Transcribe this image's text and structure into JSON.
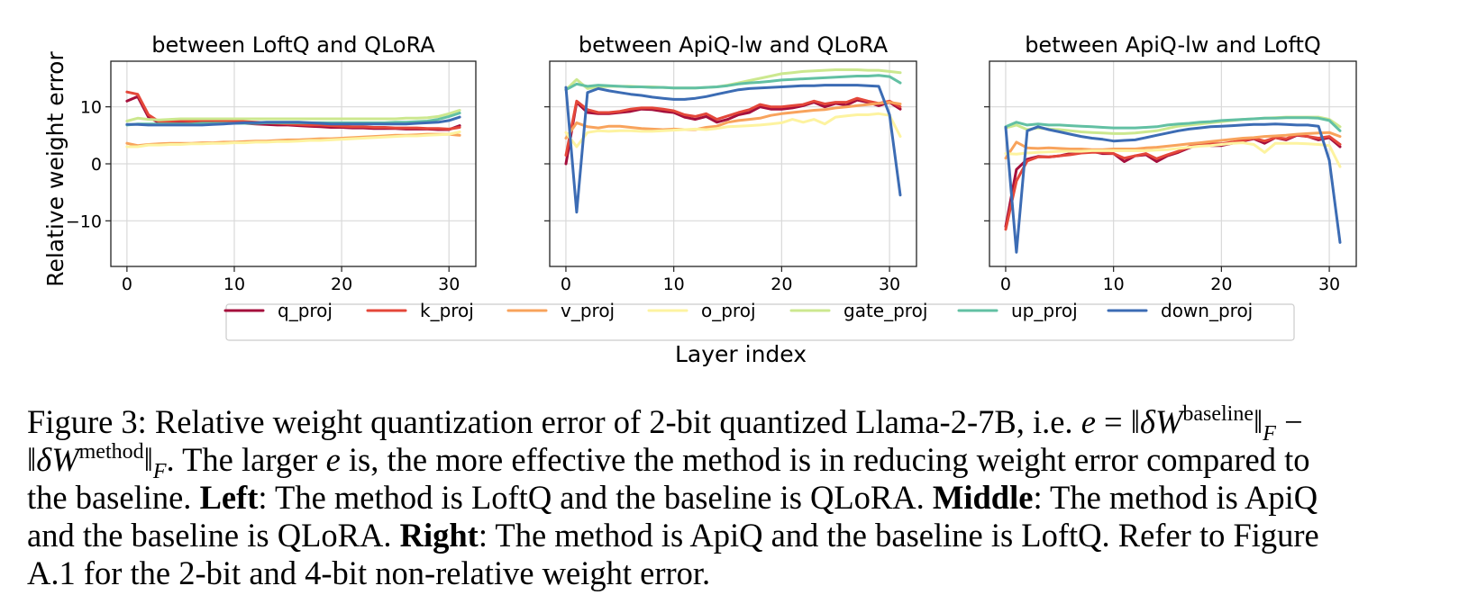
{
  "figure": {
    "ylabel": "Relative weight error",
    "xlabel": "Layer index",
    "legend": [
      {
        "name": "q_proj",
        "color": "#a50f3c"
      },
      {
        "name": "k_proj",
        "color": "#e4473a"
      },
      {
        "name": "v_proj",
        "color": "#f8a35c"
      },
      {
        "name": "o_proj",
        "color": "#fdf3a0"
      },
      {
        "name": "gate_proj",
        "color": "#cce88f"
      },
      {
        "name": "up_proj",
        "color": "#62c0a3"
      },
      {
        "name": "down_proj",
        "color": "#3c6cb4"
      }
    ]
  },
  "chart_data": [
    {
      "type": "line",
      "title": "between LoftQ and QLoRA",
      "xlabel": "Layer index",
      "ylabel": "Relative weight error",
      "xlim": [
        -1.5,
        32.5
      ],
      "ylim": [
        -18,
        18
      ],
      "xticks": [
        0,
        10,
        20,
        30
      ],
      "yticks": [
        -10,
        0,
        10
      ],
      "grid": true,
      "x": [
        0,
        1,
        2,
        3,
        4,
        5,
        6,
        7,
        8,
        9,
        10,
        11,
        12,
        13,
        14,
        15,
        16,
        17,
        18,
        19,
        20,
        21,
        22,
        23,
        24,
        25,
        26,
        27,
        28,
        29,
        30,
        31
      ],
      "series": [
        {
          "name": "q_proj",
          "values": [
            11.0,
            11.8,
            8.2,
            7.2,
            7.3,
            7.4,
            7.3,
            7.3,
            7.2,
            7.2,
            7.2,
            7.1,
            7.0,
            6.9,
            6.8,
            6.8,
            6.7,
            6.6,
            6.5,
            6.4,
            6.4,
            6.3,
            6.3,
            6.2,
            6.2,
            6.2,
            6.1,
            6.1,
            6.1,
            6.0,
            6.0,
            6.7
          ]
        },
        {
          "name": "k_proj",
          "values": [
            12.6,
            12.2,
            8.6,
            7.4,
            7.5,
            7.6,
            7.5,
            7.6,
            7.6,
            7.5,
            7.5,
            7.4,
            7.3,
            7.2,
            7.1,
            7.0,
            6.9,
            6.8,
            6.8,
            6.7,
            6.6,
            6.5,
            6.5,
            6.4,
            6.4,
            6.3,
            6.3,
            6.3,
            6.2,
            6.2,
            6.1,
            6.4
          ]
        },
        {
          "name": "v_proj",
          "values": [
            3.6,
            3.2,
            3.4,
            3.5,
            3.6,
            3.6,
            3.6,
            3.7,
            3.7,
            3.8,
            3.8,
            3.9,
            4.0,
            4.0,
            4.1,
            4.2,
            4.2,
            4.3,
            4.4,
            4.4,
            4.5,
            4.6,
            4.7,
            4.8,
            4.9,
            5.0,
            5.0,
            5.1,
            5.2,
            5.2,
            5.2,
            5.0
          ]
        },
        {
          "name": "o_proj",
          "values": [
            3.0,
            3.0,
            3.3,
            3.3,
            3.4,
            3.4,
            3.5,
            3.5,
            3.6,
            3.6,
            3.7,
            3.7,
            3.8,
            3.8,
            3.9,
            3.9,
            4.0,
            4.1,
            4.1,
            4.2,
            4.3,
            4.4,
            4.5,
            4.6,
            4.7,
            4.8,
            4.9,
            4.9,
            5.0,
            5.1,
            5.2,
            5.6
          ]
        },
        {
          "name": "gate_proj",
          "values": [
            7.5,
            8.0,
            7.8,
            7.7,
            7.8,
            7.9,
            7.9,
            7.9,
            7.9,
            7.9,
            7.9,
            7.9,
            7.9,
            7.9,
            7.9,
            7.9,
            7.9,
            7.9,
            7.9,
            7.9,
            7.9,
            7.9,
            7.9,
            7.9,
            7.9,
            7.9,
            8.0,
            8.0,
            8.1,
            8.3,
            8.8,
            9.4
          ]
        },
        {
          "name": "up_proj",
          "values": [
            6.8,
            7.0,
            7.0,
            7.0,
            7.0,
            7.0,
            7.0,
            7.1,
            7.1,
            7.1,
            7.1,
            7.1,
            7.1,
            7.2,
            7.2,
            7.2,
            7.2,
            7.2,
            7.2,
            7.2,
            7.2,
            7.2,
            7.2,
            7.2,
            7.2,
            7.3,
            7.3,
            7.4,
            7.5,
            7.8,
            8.3,
            8.9
          ]
        },
        {
          "name": "down_proj",
          "values": [
            6.9,
            6.9,
            6.8,
            6.8,
            6.8,
            6.8,
            6.8,
            6.8,
            6.9,
            7.0,
            7.1,
            7.2,
            7.2,
            7.3,
            7.3,
            7.3,
            7.3,
            7.2,
            7.1,
            7.0,
            7.0,
            7.0,
            7.0,
            7.0,
            7.0,
            7.0,
            7.0,
            7.1,
            7.2,
            7.3,
            7.6,
            8.2
          ]
        }
      ]
    },
    {
      "type": "line",
      "title": "between ApiQ-lw and QLoRA",
      "xlabel": "Layer index",
      "ylabel": "",
      "xlim": [
        -1.5,
        32.5
      ],
      "ylim": [
        -18,
        18
      ],
      "xticks": [
        0,
        10,
        20,
        30
      ],
      "yticks": [
        -10,
        0,
        10
      ],
      "grid": true,
      "x": [
        0,
        1,
        2,
        3,
        4,
        5,
        6,
        7,
        8,
        9,
        10,
        11,
        12,
        13,
        14,
        15,
        16,
        17,
        18,
        19,
        20,
        21,
        22,
        23,
        24,
        25,
        26,
        27,
        28,
        29,
        30,
        31
      ],
      "series": [
        {
          "name": "q_proj",
          "values": [
            0.0,
            10.8,
            9.0,
            8.8,
            8.8,
            9.0,
            9.2,
            9.6,
            9.5,
            9.2,
            9.0,
            8.2,
            7.8,
            8.3,
            7.3,
            7.8,
            8.6,
            9.0,
            10.0,
            9.6,
            9.6,
            9.8,
            10.2,
            10.8,
            10.0,
            10.6,
            10.3,
            11.2,
            10.8,
            10.2,
            10.8,
            9.6
          ]
        },
        {
          "name": "k_proj",
          "values": [
            1.5,
            11.0,
            9.5,
            9.0,
            9.0,
            9.2,
            9.6,
            9.8,
            9.8,
            9.6,
            9.3,
            8.6,
            8.3,
            8.8,
            7.8,
            8.4,
            9.0,
            9.5,
            10.4,
            10.0,
            10.0,
            10.2,
            10.4,
            11.0,
            10.5,
            10.8,
            10.8,
            11.5,
            11.0,
            10.6,
            11.0,
            10.0
          ]
        },
        {
          "name": "v_proj",
          "values": [
            4.5,
            7.2,
            6.5,
            6.3,
            6.6,
            6.6,
            6.4,
            6.2,
            6.1,
            6.0,
            6.1,
            6.0,
            6.0,
            6.4,
            6.6,
            7.3,
            7.6,
            7.8,
            8.0,
            8.5,
            8.8,
            9.0,
            9.2,
            9.4,
            9.5,
            9.8,
            10.0,
            10.2,
            10.4,
            10.6,
            10.8,
            10.5
          ]
        },
        {
          "name": "o_proj",
          "values": [
            5.5,
            3.0,
            5.5,
            5.8,
            5.7,
            5.8,
            5.8,
            5.7,
            5.7,
            5.8,
            5.9,
            6.0,
            6.1,
            6.0,
            6.2,
            6.5,
            6.6,
            6.7,
            6.8,
            7.0,
            7.2,
            7.8,
            7.3,
            7.8,
            7.0,
            8.2,
            8.4,
            8.6,
            8.6,
            8.8,
            8.5,
            4.8
          ]
        },
        {
          "name": "gate_proj",
          "values": [
            13.0,
            14.8,
            13.2,
            13.5,
            13.6,
            13.6,
            13.6,
            13.5,
            13.5,
            13.4,
            13.3,
            13.3,
            13.3,
            13.4,
            13.5,
            13.8,
            14.2,
            14.6,
            15.0,
            15.4,
            15.8,
            16.0,
            16.2,
            16.3,
            16.4,
            16.5,
            16.5,
            16.5,
            16.4,
            16.4,
            16.2,
            16.0
          ]
        },
        {
          "name": "up_proj",
          "values": [
            13.0,
            14.0,
            13.6,
            13.8,
            13.7,
            13.6,
            13.5,
            13.5,
            13.4,
            13.4,
            13.3,
            13.3,
            13.3,
            13.4,
            13.5,
            13.7,
            14.0,
            14.2,
            14.3,
            14.5,
            14.7,
            14.8,
            14.9,
            15.0,
            15.1,
            15.2,
            15.3,
            15.4,
            15.4,
            15.5,
            15.3,
            14.2
          ]
        },
        {
          "name": "down_proj",
          "values": [
            13.4,
            -8.5,
            12.5,
            13.2,
            12.8,
            12.5,
            12.2,
            12.0,
            11.7,
            11.5,
            11.3,
            11.3,
            11.5,
            11.8,
            12.2,
            12.6,
            13.0,
            13.2,
            13.3,
            13.4,
            13.5,
            13.6,
            13.7,
            13.7,
            13.8,
            13.8,
            13.8,
            13.8,
            13.7,
            13.6,
            8.6,
            -5.5
          ]
        }
      ]
    },
    {
      "type": "line",
      "title": "between ApiQ-lw and LoftQ",
      "xlabel": "Layer index",
      "ylabel": "",
      "xlim": [
        -1.5,
        32.5
      ],
      "ylim": [
        -18,
        18
      ],
      "xticks": [
        0,
        10,
        20,
        30
      ],
      "yticks": [
        -10,
        0,
        10
      ],
      "grid": true,
      "x": [
        0,
        1,
        2,
        3,
        4,
        5,
        6,
        7,
        8,
        9,
        10,
        11,
        12,
        13,
        14,
        15,
        16,
        17,
        18,
        19,
        20,
        21,
        22,
        23,
        24,
        25,
        26,
        27,
        28,
        29,
        30,
        31
      ],
      "series": [
        {
          "name": "q_proj",
          "values": [
            -11.0,
            -1.0,
            0.8,
            1.3,
            1.2,
            1.4,
            1.8,
            2.0,
            2.2,
            1.8,
            1.8,
            0.4,
            1.4,
            1.6,
            0.4,
            1.4,
            2.0,
            2.8,
            3.5,
            3.2,
            3.2,
            3.6,
            4.0,
            4.4,
            3.6,
            4.6,
            4.2,
            5.0,
            4.8,
            4.2,
            4.6,
            3.0
          ]
        },
        {
          "name": "k_proj",
          "values": [
            -11.5,
            -3.0,
            0.5,
            1.2,
            1.2,
            1.4,
            1.6,
            1.9,
            2.0,
            2.0,
            1.8,
            1.0,
            1.4,
            1.8,
            0.9,
            1.6,
            2.2,
            3.0,
            3.6,
            3.5,
            3.5,
            3.8,
            4.1,
            4.5,
            4.0,
            4.6,
            4.4,
            5.1,
            4.8,
            4.5,
            4.8,
            3.4
          ]
        },
        {
          "name": "v_proj",
          "values": [
            1.0,
            3.8,
            2.8,
            2.7,
            2.8,
            2.7,
            2.6,
            2.6,
            2.5,
            2.5,
            2.6,
            2.6,
            2.6,
            2.8,
            2.9,
            3.1,
            3.3,
            3.5,
            3.7,
            3.9,
            4.1,
            4.3,
            4.5,
            4.6,
            4.8,
            4.9,
            5.0,
            5.2,
            5.3,
            5.4,
            5.5,
            4.8
          ]
        },
        {
          "name": "o_proj",
          "values": [
            1.8,
            1.7,
            1.9,
            2.0,
            2.1,
            2.2,
            2.2,
            2.2,
            2.3,
            2.3,
            2.3,
            2.3,
            2.3,
            2.3,
            2.4,
            2.5,
            2.7,
            2.9,
            3.1,
            3.2,
            3.4,
            3.6,
            3.7,
            3.4,
            2.0,
            3.6,
            3.6,
            3.6,
            3.5,
            3.4,
            3.2,
            -0.5
          ]
        },
        {
          "name": "gate_proj",
          "values": [
            6.3,
            6.8,
            6.0,
            6.3,
            6.1,
            6.0,
            5.8,
            5.6,
            5.5,
            5.4,
            5.3,
            5.3,
            5.4,
            5.6,
            5.8,
            6.2,
            6.6,
            6.8,
            7.0,
            7.2,
            7.4,
            7.6,
            7.8,
            7.9,
            8.0,
            8.1,
            8.2,
            8.2,
            8.2,
            8.2,
            7.8,
            6.5
          ]
        },
        {
          "name": "up_proj",
          "values": [
            6.5,
            7.3,
            6.8,
            7.0,
            6.8,
            6.8,
            6.7,
            6.6,
            6.5,
            6.4,
            6.3,
            6.3,
            6.3,
            6.4,
            6.5,
            6.8,
            7.0,
            7.1,
            7.3,
            7.4,
            7.6,
            7.7,
            7.8,
            7.9,
            8.0,
            8.0,
            8.1,
            8.1,
            8.1,
            8.0,
            7.6,
            5.8
          ]
        },
        {
          "name": "down_proj",
          "values": [
            6.4,
            -15.5,
            5.8,
            6.5,
            6.0,
            5.6,
            5.2,
            4.8,
            4.5,
            4.3,
            4.0,
            4.1,
            4.2,
            4.6,
            5.0,
            5.4,
            5.8,
            6.1,
            6.3,
            6.5,
            6.6,
            6.7,
            6.8,
            6.9,
            6.9,
            7.0,
            6.9,
            6.8,
            6.8,
            6.6,
            0.6,
            -13.8
          ]
        }
      ]
    }
  ],
  "caption": {
    "l1_a": "Figure 3: Relative weight quantization error of 2-bit quantized Llama-2-7B, i.e. ",
    "l1_e": "e",
    "l1_eq": " = ‖",
    "l1_dw": "δW",
    "l1_sup": "baseline",
    "l1_norm": "‖",
    "l1_sub": "F",
    "l1_minus": " −",
    "l2_open": "‖",
    "l2_dw": "δW",
    "l2_sup": "method",
    "l2_norm": "‖",
    "l2_sub": "F",
    "l2_a": ". The larger ",
    "l2_e": "e",
    "l2_b": " is, the more effective the method is in reducing weight error compared to",
    "l3_a": "the baseline. ",
    "l3_left": "Left",
    "l3_b": ": The method is LoftQ and the baseline is QLoRA. ",
    "l3_middle": "Middle",
    "l3_c": ": The method is ApiQ",
    "l4_a": "and the baseline is QLoRA. ",
    "l4_right": "Right",
    "l4_b": ": The method is ApiQ and the baseline is LoftQ. Refer to Figure",
    "l5": "A.1 for the 2-bit and 4-bit non-relative weight error."
  }
}
